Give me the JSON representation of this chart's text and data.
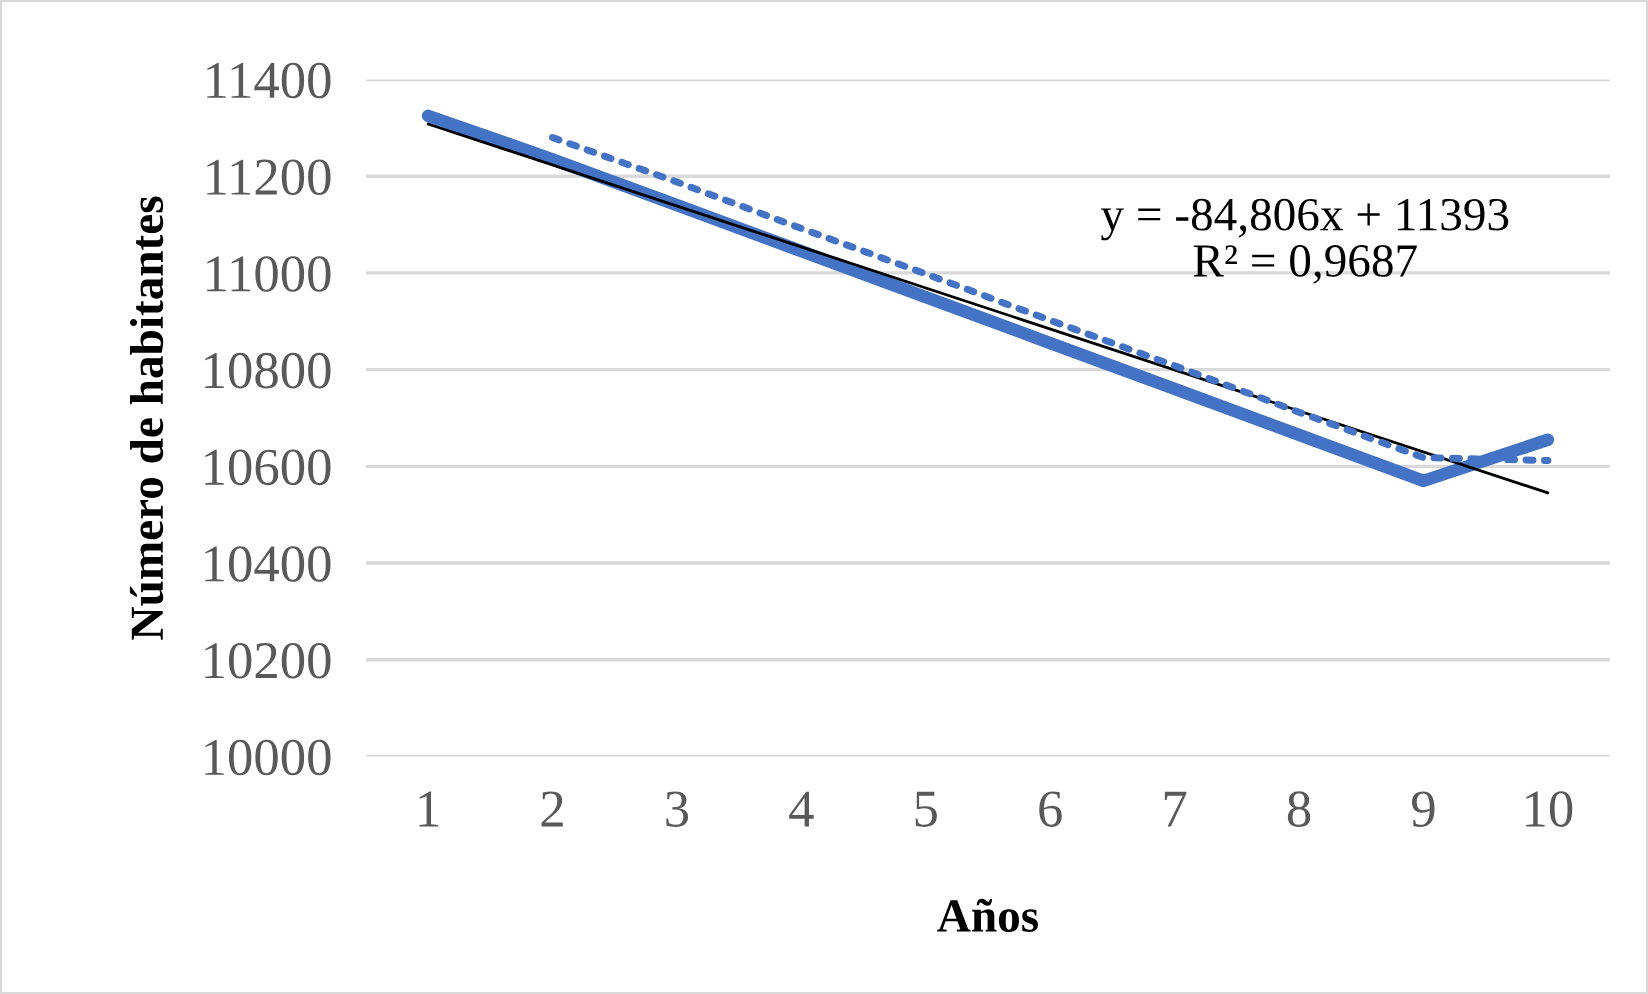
{
  "chart_data": {
    "type": "line",
    "xlabel": "Años",
    "ylabel": "Número de habitantes",
    "categories": [
      "1",
      "2",
      "3",
      "4",
      "5",
      "6",
      "7",
      "8",
      "9",
      "10"
    ],
    "series": [
      {
        "color": "#4472c4",
        "values": [
          11325,
          11235,
          11140,
          11045,
          10950,
          10855,
          10760,
          10665,
          10570,
          10655
        ],
        "line_style": "solid"
      },
      {
        "color": "#4472c4",
        "values": [
          null,
          11280,
          11188,
          11092,
          10998,
          10902,
          10808,
          10712,
          10618,
          10612
        ],
        "line_style": "dotted"
      },
      {
        "color": "#000000",
        "x": [
          "1",
          "10"
        ],
        "values": [
          11308,
          10545
        ],
        "line_style": "solid"
      }
    ],
    "annotations": [
      "y = -84,806x + 11393\nR² = 0,9687"
    ],
    "ylim": [
      10000,
      11400
    ],
    "yticks": [
      10000,
      10200,
      10400,
      10600,
      10800,
      11000,
      11200,
      11400
    ],
    "grid": "y",
    "legend": false,
    "marker": "none"
  }
}
